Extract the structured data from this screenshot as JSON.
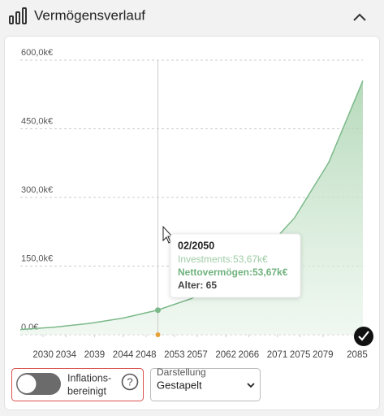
{
  "header": {
    "title": "Vermögensverlauf"
  },
  "chart_data": {
    "type": "area",
    "color": "#7cb98a",
    "x": [
      2026,
      2032,
      2038,
      2044,
      2050,
      2056,
      2062,
      2068,
      2074,
      2080,
      2086
    ],
    "values": [
      11300,
      16700,
      24600,
      36400,
      53670,
      79200,
      117000,
      173000,
      255000,
      376000,
      555000
    ],
    "xlim": [
      2026,
      2086
    ],
    "xticks": [
      2030,
      2034,
      2039,
      2044,
      2048,
      2053,
      2057,
      2062,
      2066,
      2071,
      2075,
      2079,
      2085
    ],
    "ylim": [
      0,
      600000
    ],
    "yticks": [
      {
        "value": 0,
        "label": "0,0€"
      },
      {
        "value": 150000,
        "label": "150,0k€"
      },
      {
        "value": 300000,
        "label": "300,0k€"
      },
      {
        "value": 450000,
        "label": "450,0k€"
      },
      {
        "value": 600000,
        "label": "600,0k€"
      }
    ],
    "grid": true,
    "tooltip": {
      "x": 2050.1,
      "y": 53670,
      "title": "02/2050",
      "investments": "Investments:53,67k€",
      "net": "Nettovermögen:53,67k€",
      "age": "Alter: 65"
    }
  },
  "controls": {
    "toggle_label": [
      "Inflations-",
      "bereinigt"
    ],
    "help": "?",
    "select_label": "Darstellung",
    "select_value": "Gestapelt"
  }
}
